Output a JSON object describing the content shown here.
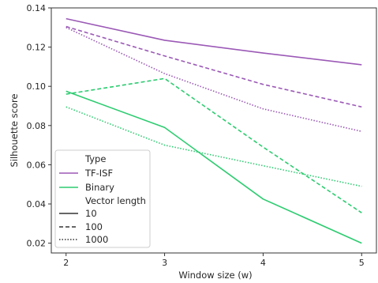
{
  "chart_data": {
    "type": "line",
    "title": "",
    "xlabel": "Window size (w)",
    "ylabel": "Silhouette score",
    "x": [
      2,
      3,
      4,
      5
    ],
    "xlim": [
      1.85,
      5.15
    ],
    "ylim": [
      0.015,
      0.14
    ],
    "xticks": [
      "2",
      "3",
      "4",
      "5"
    ],
    "yticks": [
      "0.02",
      "0.04",
      "0.06",
      "0.08",
      "0.10",
      "0.12",
      "0.14"
    ],
    "grid": false,
    "legend_position": "lower-left",
    "colors": {
      "TF-ISF": "#9b59b6",
      "Binary": "#2ecc71"
    },
    "series": [
      {
        "type": "TF-ISF",
        "vector_length": "10",
        "dash": "solid",
        "values": [
          0.1345,
          0.1235,
          0.117,
          0.111
        ]
      },
      {
        "type": "TF-ISF",
        "vector_length": "100",
        "dash": "dashed",
        "values": [
          0.1305,
          0.1155,
          0.101,
          0.0895
        ]
      },
      {
        "type": "TF-ISF",
        "vector_length": "1000",
        "dash": "dotted",
        "values": [
          0.13,
          0.1065,
          0.0885,
          0.077
        ]
      },
      {
        "type": "Binary",
        "vector_length": "10",
        "dash": "solid",
        "values": [
          0.0975,
          0.079,
          0.0425,
          0.02
        ]
      },
      {
        "type": "Binary",
        "vector_length": "100",
        "dash": "dashed",
        "values": [
          0.096,
          0.104,
          0.069,
          0.0355
        ]
      },
      {
        "type": "Binary",
        "vector_length": "1000",
        "dash": "dotted",
        "values": [
          0.0895,
          0.07,
          0.0595,
          0.049
        ]
      }
    ],
    "legend": {
      "type_title": "Type",
      "types": [
        "TF-ISF",
        "Binary"
      ],
      "length_title": "Vector length",
      "lengths": [
        "10",
        "100",
        "1000"
      ]
    }
  }
}
